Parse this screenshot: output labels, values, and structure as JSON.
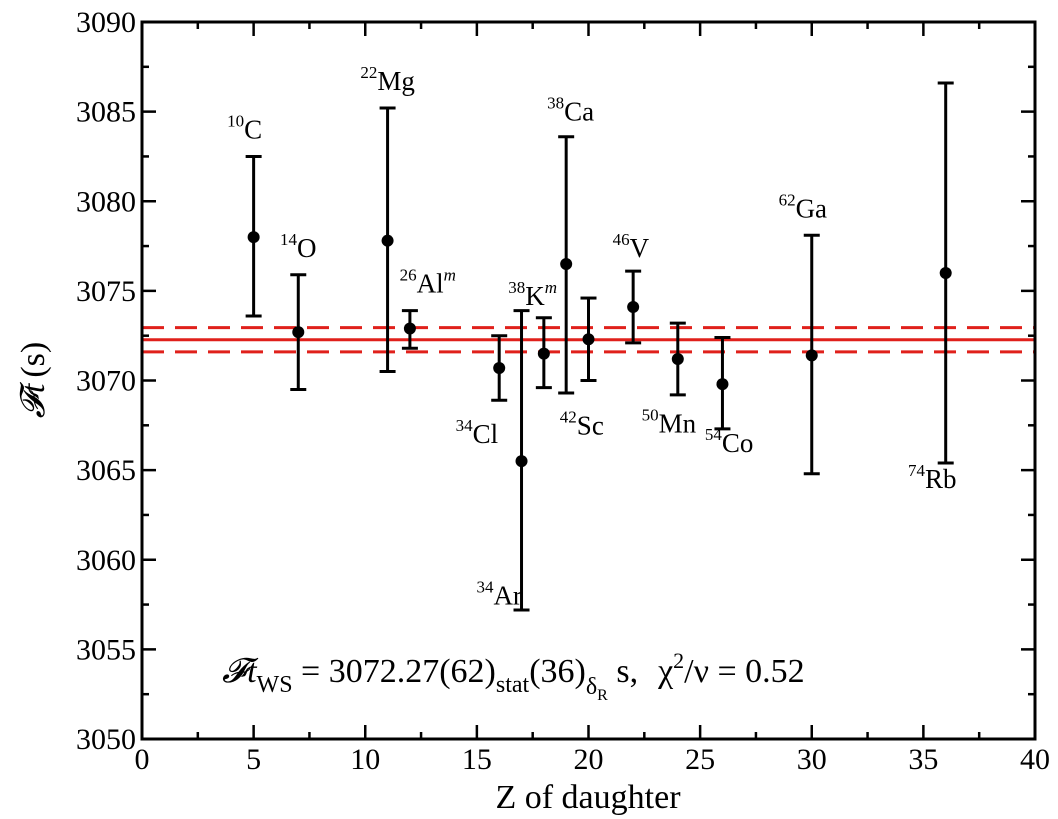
{
  "chart_data": {
    "type": "scatter",
    "xlabel": "Z of daughter",
    "ylabel_symbol": "𝓕t",
    "ylabel_unit": "(s)",
    "xlim": [
      0,
      40
    ],
    "ylim": [
      3050,
      3090
    ],
    "x_ticks": [
      0,
      5,
      10,
      15,
      20,
      25,
      30,
      35,
      40
    ],
    "y_ticks": [
      3050,
      3055,
      3060,
      3065,
      3070,
      3075,
      3080,
      3085,
      3090
    ],
    "mean_value": 3072.27,
    "mean_band": [
      3071.6,
      3072.95
    ],
    "line_color": "#e0201b",
    "marker_color": "#000000",
    "points": [
      {
        "sup": "10",
        "base": "C",
        "supm": "",
        "x": 5,
        "y": 3078.0,
        "ylow": 3073.6,
        "yhigh": 3082.5,
        "label_x": 4.6,
        "label_y": 3083.5,
        "align": "middle"
      },
      {
        "sup": "14",
        "base": "O",
        "supm": "",
        "x": 7,
        "y": 3072.7,
        "ylow": 3069.5,
        "yhigh": 3075.9,
        "label_x": 7.0,
        "label_y": 3076.9,
        "align": "middle"
      },
      {
        "sup": "22",
        "base": "Mg",
        "supm": "",
        "x": 11,
        "y": 3077.8,
        "ylow": 3070.5,
        "yhigh": 3085.2,
        "label_x": 11.0,
        "label_y": 3086.2,
        "align": "middle"
      },
      {
        "sup": "26",
        "base": "Al",
        "supm": "m",
        "x": 12,
        "y": 3072.9,
        "ylow": 3071.8,
        "yhigh": 3073.9,
        "label_x": 12.8,
        "label_y": 3074.9,
        "align": "middle"
      },
      {
        "sup": "34",
        "base": "Cl",
        "supm": "",
        "x": 16,
        "y": 3070.7,
        "ylow": 3068.9,
        "yhigh": 3072.5,
        "label_x": 15.0,
        "label_y": 3066.5,
        "align": "middle"
      },
      {
        "sup": "34",
        "base": "Ar",
        "supm": "",
        "x": 17,
        "y": 3065.5,
        "ylow": 3057.2,
        "yhigh": 3073.9,
        "label_x": 16.0,
        "label_y": 3057.5,
        "align": "middle"
      },
      {
        "sup": "38",
        "base": "K",
        "supm": "m",
        "x": 18,
        "y": 3071.5,
        "ylow": 3069.6,
        "yhigh": 3073.5,
        "label_x": 17.5,
        "label_y": 3074.2,
        "align": "middle"
      },
      {
        "sup": "38",
        "base": "Ca",
        "supm": "",
        "x": 19,
        "y": 3076.5,
        "ylow": 3069.3,
        "yhigh": 3083.6,
        "label_x": 19.2,
        "label_y": 3084.5,
        "align": "middle"
      },
      {
        "sup": "42",
        "base": "Sc",
        "supm": "",
        "x": 20,
        "y": 3072.3,
        "ylow": 3070.0,
        "yhigh": 3074.6,
        "label_x": 19.7,
        "label_y": 3067.0,
        "align": "middle"
      },
      {
        "sup": "46",
        "base": "V",
        "supm": "",
        "x": 22,
        "y": 3074.1,
        "ylow": 3072.1,
        "yhigh": 3076.1,
        "label_x": 21.9,
        "label_y": 3076.9,
        "align": "middle"
      },
      {
        "sup": "50",
        "base": "Mn",
        "supm": "",
        "x": 24,
        "y": 3071.2,
        "ylow": 3069.2,
        "yhigh": 3073.2,
        "label_x": 23.6,
        "label_y": 3067.1,
        "align": "middle"
      },
      {
        "sup": "54",
        "base": "Co",
        "supm": "",
        "x": 26,
        "y": 3069.8,
        "ylow": 3067.3,
        "yhigh": 3072.4,
        "label_x": 26.3,
        "label_y": 3066.0,
        "align": "middle"
      },
      {
        "sup": "62",
        "base": "Ga",
        "supm": "",
        "x": 30,
        "y": 3071.4,
        "ylow": 3064.8,
        "yhigh": 3078.1,
        "label_x": 29.6,
        "label_y": 3079.1,
        "align": "middle"
      },
      {
        "sup": "74",
        "base": "Rb",
        "supm": "",
        "x": 36,
        "y": 3076.0,
        "ylow": 3065.4,
        "yhigh": 3086.6,
        "label_x": 35.4,
        "label_y": 3064.0,
        "align": "middle"
      }
    ],
    "annotation": {
      "symbol": "𝓕t",
      "sub_ws": "WS",
      "eq_value": " = 3072.27(62)",
      "sub_stat": "stat",
      "paren": "(36)",
      "sub_delta": "δ",
      "sub_delta_r": "R",
      "unit": " s,",
      "chi": "χ",
      "chi_sup": "2",
      "chi_rest": "/ν = 0.52"
    }
  }
}
